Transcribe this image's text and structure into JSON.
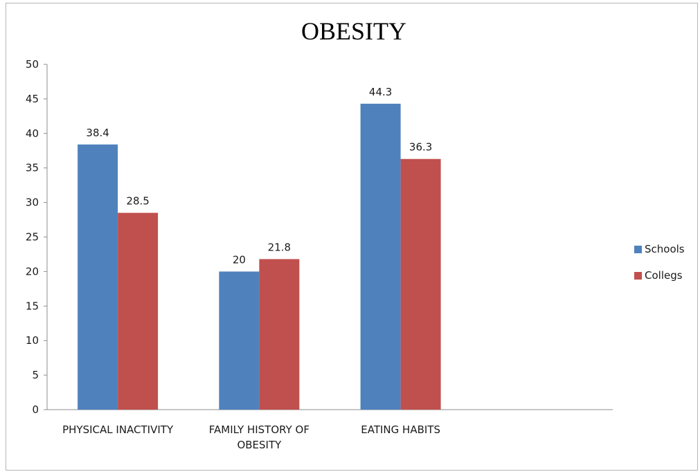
{
  "chart_data": {
    "type": "bar",
    "title": "OBESITY",
    "categories": [
      [
        "PHYSICAL INACTIVITY"
      ],
      [
        "FAMILY HISTORY OF",
        "OBESITY"
      ],
      [
        "EATING HABITS"
      ]
    ],
    "series": [
      {
        "name": "Schools",
        "values": [
          38.4,
          20,
          44.3
        ],
        "labels": [
          "38.4",
          "20",
          "44.3"
        ],
        "color": "#4f81bd"
      },
      {
        "name": "Collegs",
        "values": [
          28.5,
          21.8,
          36.3
        ],
        "labels": [
          "28.5",
          "21.8",
          "36.3"
        ],
        "color": "#c0504d"
      }
    ],
    "ylim": [
      0,
      50
    ],
    "yticks": [
      "0",
      "5",
      "10",
      "15",
      "20",
      "25",
      "30",
      "35",
      "40",
      "45",
      "50"
    ],
    "grid": false,
    "legend_position": "right"
  }
}
